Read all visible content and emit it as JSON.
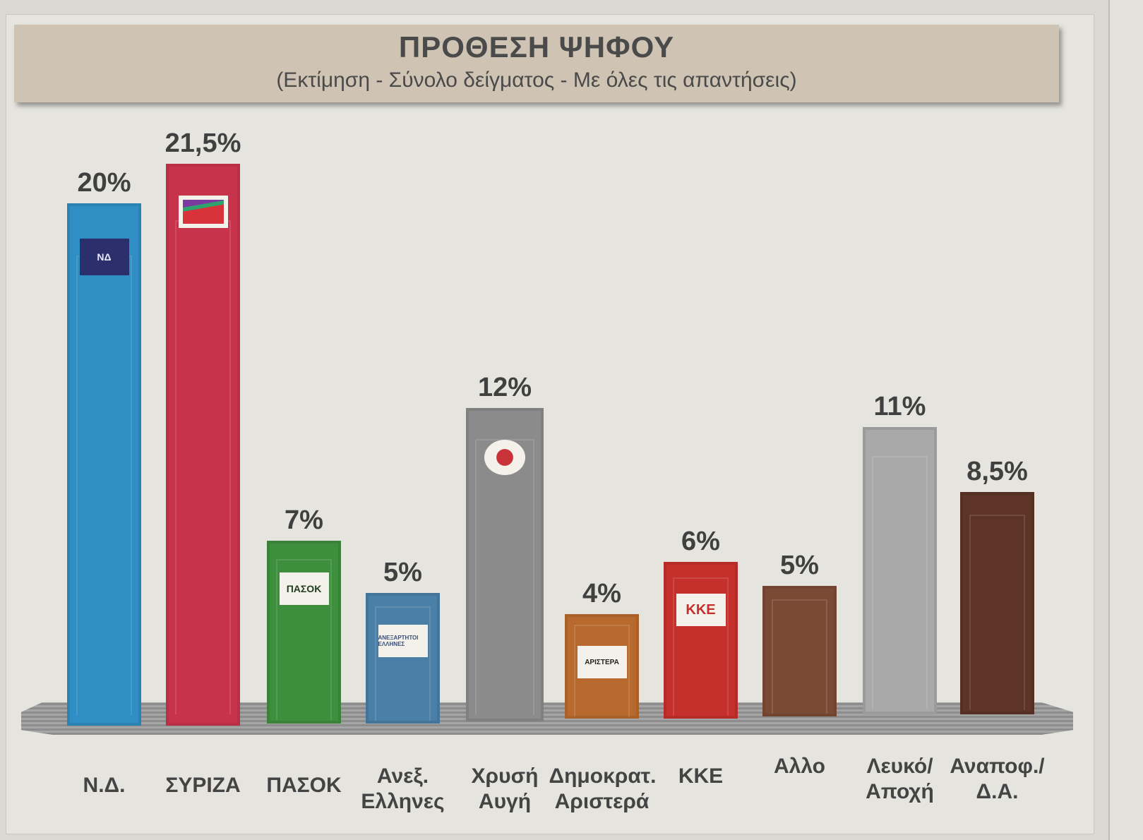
{
  "header": {
    "title": "ΠΡΟΘΕΣΗ ΨΗΦΟΥ",
    "subtitle": "(Εκτίμηση - Σύνολο δείγματος - Με όλες τις απαντήσεις)"
  },
  "bars": [
    {
      "label_line1": "Ν.Δ.",
      "label_line2": "",
      "value_label": "20%",
      "logo": "ΝΔ",
      "color": "#2f8fc4"
    },
    {
      "label_line1": "ΣΥΡΙΖΑ",
      "label_line2": "",
      "value_label": "21,5%",
      "logo": "",
      "color": "#c8334c"
    },
    {
      "label_line1": "ΠΑΣΟΚ",
      "label_line2": "",
      "value_label": "7%",
      "logo": "ΠΑΣΟΚ",
      "color": "#3d8f3e"
    },
    {
      "label_line1": "Ανεξ.",
      "label_line2": "Ελληνες",
      "value_label": "5%",
      "logo": "ΑΝΕΞΑΡΤΗΤΟΙ ΕΛΛΗΝΕΣ",
      "color": "#4a7fa7"
    },
    {
      "label_line1": "Χρυσή",
      "label_line2": "Αυγή",
      "value_label": "12%",
      "logo": "",
      "color": "#8b8b8b"
    },
    {
      "label_line1": "Δημοκρατ.",
      "label_line2": "Αριστερά",
      "value_label": "4%",
      "logo": "ΑΡΙΣΤΕΡΑ",
      "color": "#b86a2e"
    },
    {
      "label_line1": "ΚΚΕ",
      "label_line2": "",
      "value_label": "6%",
      "logo": "ΚΚΕ",
      "color": "#c52f2c"
    },
    {
      "label_line1": "Αλλο",
      "label_line2": "",
      "value_label": "5%",
      "logo": "",
      "color": "#7a4a35"
    },
    {
      "label_line1": "Λευκό/",
      "label_line2": "Αποχή",
      "value_label": "11%",
      "logo": "",
      "color": "#a9a9a9"
    },
    {
      "label_line1": "Αναποφ./",
      "label_line2": "Δ.Α.",
      "value_label": "8,5%",
      "logo": "",
      "color": "#5e3328"
    }
  ],
  "chart_data": {
    "type": "bar",
    "title": "ΠΡΟΘΕΣΗ ΨΗΦΟΥ",
    "subtitle": "(Εκτίμηση - Σύνολο δείγματος - Με όλες τις απαντήσεις)",
    "categories": [
      "Ν.Δ.",
      "ΣΥΡΙΖΑ",
      "ΠΑΣΟΚ",
      "Ανεξ. Ελληνες",
      "Χρυσή Αυγή",
      "Δημοκρατ. Αριστερά",
      "ΚΚΕ",
      "Αλλο",
      "Λευκό/Αποχή",
      "Αναποφ./Δ.Α."
    ],
    "values": [
      20,
      21.5,
      7,
      5,
      12,
      4,
      6,
      5,
      11,
      8.5
    ],
    "value_labels": [
      "20%",
      "21,5%",
      "7%",
      "5%",
      "12%",
      "4%",
      "6%",
      "5%",
      "11%",
      "8,5%"
    ],
    "colors": [
      "#2f8fc4",
      "#c8334c",
      "#3d8f3e",
      "#4a7fa7",
      "#8b8b8b",
      "#b86a2e",
      "#c52f2c",
      "#7a4a35",
      "#a9a9a9",
      "#5e3328"
    ],
    "xlabel": "",
    "ylabel": "",
    "unit": "%",
    "grid": false,
    "legend": "none"
  }
}
